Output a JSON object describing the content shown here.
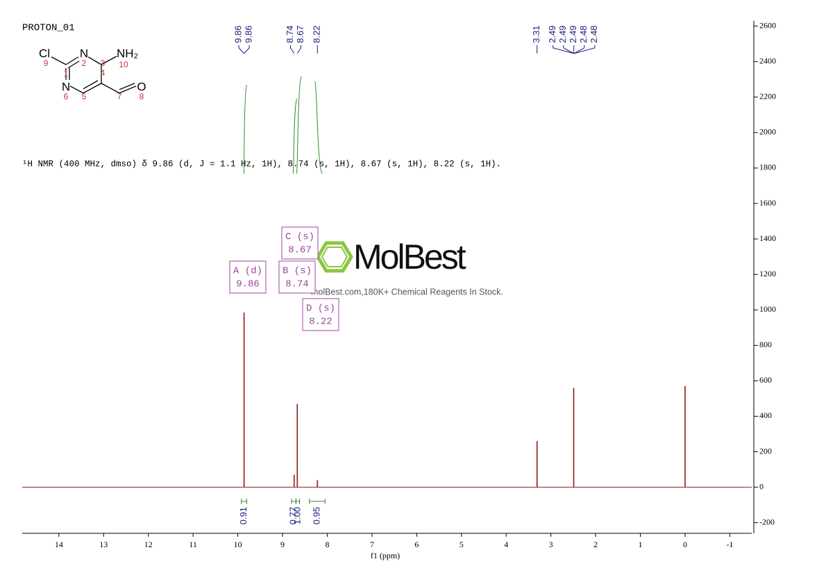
{
  "chart_data": {
    "type": "nmr",
    "title": "PROTON_01",
    "description": "¹H NMR (400 MHz, dmso) δ 9.86 (d, J = 1.1 Hz, 1H), 8.74 (s, 1H), 8.67 (s, 1H), 8.22 (s, 1H).",
    "x_label": "f1 (ppm)",
    "xlim": [
      14.82,
      -1.49
    ],
    "xticks": [
      14,
      13,
      12,
      11,
      10,
      9,
      8,
      7,
      6,
      5,
      4,
      3,
      2,
      1,
      0,
      -1
    ],
    "ylim": [
      -260,
      2630
    ],
    "yticks": [
      -200,
      0,
      200,
      400,
      600,
      800,
      1000,
      1200,
      1400,
      1600,
      1800,
      2000,
      2200,
      2400,
      2600
    ],
    "color": "#8b1a1a",
    "x": [
      9.86,
      8.74,
      8.67,
      8.22,
      3.31,
      2.49,
      0
    ],
    "values": [
      985,
      70,
      470,
      40,
      260,
      560,
      570
    ],
    "peak_labels": [
      9.86,
      9.86,
      8.74,
      8.67,
      8.22,
      3.31,
      2.49,
      2.49,
      2.49,
      2.48,
      2.48
    ],
    "peak_label_color": "#1a1a80",
    "integrals": {
      "color": "#2e8b2e",
      "ranges": [
        [
          9.92,
          9.8
        ],
        [
          8.8,
          8.7
        ],
        [
          8.7,
          8.62
        ],
        [
          8.4,
          8.05
        ]
      ],
      "values": [
        0.91,
        0.77,
        1,
        0.95
      ],
      "value_labels": [
        "0.91",
        "0.77",
        "1.00",
        "0.95"
      ]
    },
    "multiplets": {
      "color": "#a040a0",
      "items": [
        {
          "label": "A (d)",
          "shift": 9.86
        },
        {
          "label": "B (s)",
          "shift": 8.74
        },
        {
          "label": "C (s)",
          "shift": 8.67
        },
        {
          "label": "D (s)",
          "shift": 8.22
        }
      ]
    }
  },
  "structure": {
    "atoms": [
      "Cl",
      "N",
      "NH₂",
      "N",
      "O"
    ],
    "numbers": [
      9,
      1,
      2,
      3,
      10,
      6,
      5,
      4,
      7,
      8
    ]
  },
  "watermark": {
    "text": "MolBest",
    "subtitle": "molBest.com,180K+ Chemical Reagents In Stock."
  }
}
